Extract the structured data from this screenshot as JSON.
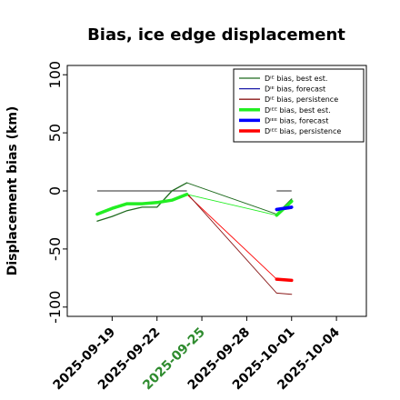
{
  "chart_data": {
    "type": "line",
    "title": "Bias, ice edge displacement",
    "xlabel": "",
    "ylabel": "Displacement bias (km)",
    "xlim": [
      "2025-09-16",
      "2025-10-06"
    ],
    "ylim": [
      -108,
      108
    ],
    "yticks": [
      100,
      50,
      0,
      -50,
      -100
    ],
    "xticks": [
      "2025-09-19",
      "2025-09-22",
      "2025-09-25",
      "2025-09-28",
      "2025-10-01",
      "2025-10-04"
    ],
    "highlight_xtick": "2025-09-25",
    "highlight_color": "#2e8b2e",
    "reference_lines": [
      {
        "y": 0,
        "x": [
          "2025-09-18",
          "2025-09-24"
        ],
        "color": "#555555"
      },
      {
        "y": 0,
        "x": [
          "2025-09-30",
          "2025-10-01"
        ],
        "color": "#555555"
      }
    ],
    "legend_position": "top-right",
    "series": [
      {
        "name": "Dᴵᴱ bias, best est.",
        "color": "#1f6b1f",
        "width": 1.3,
        "points": [
          [
            "2025-09-18",
            -26
          ],
          [
            "2025-09-19",
            -22
          ],
          [
            "2025-09-20",
            -17
          ],
          [
            "2025-09-21",
            -14
          ],
          [
            "2025-09-22",
            -14
          ],
          [
            "2025-09-23",
            0
          ],
          [
            "2025-09-24",
            7
          ],
          [
            "2025-09-30",
            -20
          ],
          [
            "2025-10-01",
            -7
          ]
        ]
      },
      {
        "name": "Dᴵᴱ bias, forecast",
        "color": "#1a1aa8",
        "width": 1.3,
        "points": [
          [
            "2025-09-30",
            -17
          ],
          [
            "2025-10-01",
            -15
          ]
        ]
      },
      {
        "name": "Dᴵᴱ bias, persistence",
        "color": "#8b1a1a",
        "width": 1.0,
        "points": [
          [
            "2025-09-24",
            -2
          ],
          [
            "2025-09-30",
            -88
          ],
          [
            "2025-10-01",
            -89
          ]
        ]
      },
      {
        "name": "Dᴵᴱᴱ bias, best est.",
        "color": "#22ee22",
        "width": 3.5,
        "points": [
          [
            "2025-09-18",
            -20
          ],
          [
            "2025-09-19",
            -15
          ],
          [
            "2025-09-20",
            -11
          ],
          [
            "2025-09-21",
            -11
          ],
          [
            "2025-09-22",
            -10
          ],
          [
            "2025-09-23",
            -8
          ],
          [
            "2025-09-24",
            -3
          ],
          [
            "2025-09-30",
            -21
          ],
          [
            "2025-10-01",
            -9
          ]
        ]
      },
      {
        "name": "Dᴵᴱᴱ bias, forecast",
        "color": "#0000ff",
        "width": 3.5,
        "points": [
          [
            "2025-09-30",
            -16
          ],
          [
            "2025-10-01",
            -14
          ]
        ]
      },
      {
        "name": "Dᴵᴱᴱ bias, persistence",
        "color": "#ff0000",
        "width": 3.5,
        "points": [
          [
            "2025-09-24",
            -3
          ],
          [
            "2025-09-30",
            -76
          ],
          [
            "2025-10-01",
            -77
          ]
        ]
      }
    ],
    "thin_connectors": [
      {
        "color": "#1f6b1f",
        "points": [
          [
            "2025-09-24",
            7
          ],
          [
            "2025-09-30",
            -20
          ]
        ]
      },
      {
        "color": "#22ee22",
        "points": [
          [
            "2025-09-24",
            -3
          ],
          [
            "2025-09-30",
            -21
          ]
        ]
      },
      {
        "color": "#ff0000",
        "points": [
          [
            "2025-09-24",
            -3
          ],
          [
            "2025-09-30",
            -76
          ]
        ]
      },
      {
        "color": "#8b1a1a",
        "points": [
          [
            "2025-09-24",
            -2
          ],
          [
            "2025-09-30",
            -88
          ]
        ]
      }
    ]
  }
}
